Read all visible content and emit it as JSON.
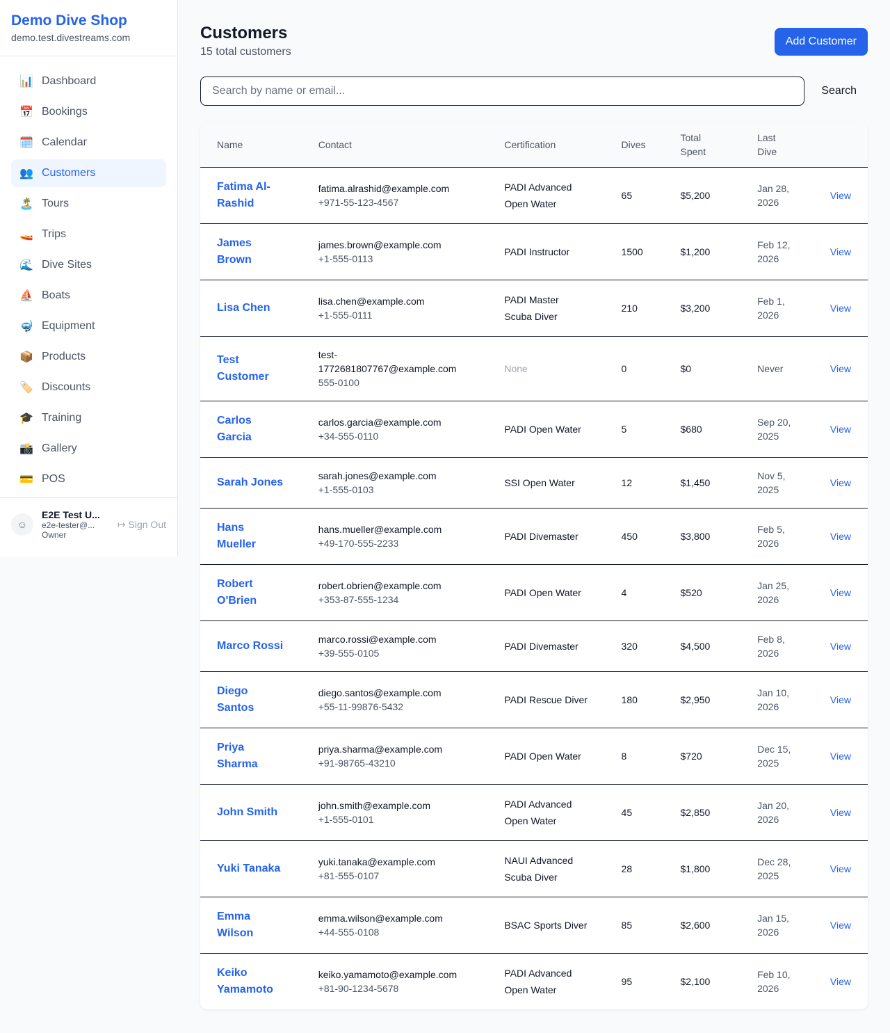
{
  "brand": {
    "title": "Demo Dive Shop",
    "domain": "demo.test.divestreams.com"
  },
  "nav": [
    {
      "label": "Dashboard",
      "icon": "📊"
    },
    {
      "label": "Bookings",
      "icon": "📅"
    },
    {
      "label": "Calendar",
      "icon": "🗓️"
    },
    {
      "label": "Customers",
      "icon": "👥",
      "active": true
    },
    {
      "label": "Tours",
      "icon": "🏝️"
    },
    {
      "label": "Trips",
      "icon": "🚤"
    },
    {
      "label": "Dive Sites",
      "icon": "🌊"
    },
    {
      "label": "Boats",
      "icon": "⛵"
    },
    {
      "label": "Equipment",
      "icon": "🤿"
    },
    {
      "label": "Products",
      "icon": "📦"
    },
    {
      "label": "Discounts",
      "icon": "🏷️"
    },
    {
      "label": "Training",
      "icon": "🎓"
    },
    {
      "label": "Gallery",
      "icon": "📸"
    },
    {
      "label": "POS",
      "icon": "💳"
    }
  ],
  "user": {
    "name": "E2E Test U...",
    "email": "e2e-tester@...",
    "role": "Owner",
    "sign_out": "Sign Out"
  },
  "page": {
    "title": "Customers",
    "subtitle": "15 total customers",
    "add_button": "Add Customer",
    "search_placeholder": "Search by name or email...",
    "search_button": "Search"
  },
  "table": {
    "headers": [
      "Name",
      "Contact",
      "Certification",
      "Dives",
      "Total Spent",
      "Last Dive"
    ],
    "action_label": "View",
    "rows": [
      {
        "name": "Fatima Al-Rashid",
        "email": "fatima.alrashid@example.com",
        "phone": "+971-55-123-4567",
        "cert": "PADI Advanced Open Water",
        "dives": "65",
        "spent": "$5,200",
        "last": "Jan 28, 2026"
      },
      {
        "name": "James Brown",
        "email": "james.brown@example.com",
        "phone": "+1-555-0113",
        "cert": "PADI Instructor",
        "dives": "1500",
        "spent": "$1,200",
        "last": "Feb 12, 2026"
      },
      {
        "name": "Lisa Chen",
        "email": "lisa.chen@example.com",
        "phone": "+1-555-0111",
        "cert": "PADI Master Scuba Diver",
        "dives": "210",
        "spent": "$3,200",
        "last": "Feb 1, 2026"
      },
      {
        "name": "Test Customer",
        "email": "test-1772681807767@example.com",
        "phone": "555-0100",
        "cert": "None",
        "dives": "0",
        "spent": "$0",
        "last": "Never"
      },
      {
        "name": "Carlos Garcia",
        "email": "carlos.garcia@example.com",
        "phone": "+34-555-0110",
        "cert": "PADI Open Water",
        "dives": "5",
        "spent": "$680",
        "last": "Sep 20, 2025"
      },
      {
        "name": "Sarah Jones",
        "email": "sarah.jones@example.com",
        "phone": "+1-555-0103",
        "cert": "SSI Open Water",
        "dives": "12",
        "spent": "$1,450",
        "last": "Nov 5, 2025"
      },
      {
        "name": "Hans Mueller",
        "email": "hans.mueller@example.com",
        "phone": "+49-170-555-2233",
        "cert": "PADI Divemaster",
        "dives": "450",
        "spent": "$3,800",
        "last": "Feb 5, 2026"
      },
      {
        "name": "Robert O'Brien",
        "email": "robert.obrien@example.com",
        "phone": "+353-87-555-1234",
        "cert": "PADI Open Water",
        "dives": "4",
        "spent": "$520",
        "last": "Jan 25, 2026"
      },
      {
        "name": "Marco Rossi",
        "email": "marco.rossi@example.com",
        "phone": "+39-555-0105",
        "cert": "PADI Divemaster",
        "dives": "320",
        "spent": "$4,500",
        "last": "Feb 8, 2026"
      },
      {
        "name": "Diego Santos",
        "email": "diego.santos@example.com",
        "phone": "+55-11-99876-5432",
        "cert": "PADI Rescue Diver",
        "dives": "180",
        "spent": "$2,950",
        "last": "Jan 10, 2026"
      },
      {
        "name": "Priya Sharma",
        "email": "priya.sharma@example.com",
        "phone": "+91-98765-43210",
        "cert": "PADI Open Water",
        "dives": "8",
        "spent": "$720",
        "last": "Dec 15, 2025"
      },
      {
        "name": "John Smith",
        "email": "john.smith@example.com",
        "phone": "+1-555-0101",
        "cert": "PADI Advanced Open Water",
        "dives": "45",
        "spent": "$2,850",
        "last": "Jan 20, 2026"
      },
      {
        "name": "Yuki Tanaka",
        "email": "yuki.tanaka@example.com",
        "phone": "+81-555-0107",
        "cert": "NAUI Advanced Scuba Diver",
        "dives": "28",
        "spent": "$1,800",
        "last": "Dec 28, 2025"
      },
      {
        "name": "Emma Wilson",
        "email": "emma.wilson@example.com",
        "phone": "+44-555-0108",
        "cert": "BSAC Sports Diver",
        "dives": "85",
        "spent": "$2,600",
        "last": "Jan 15, 2026"
      },
      {
        "name": "Keiko Yamamoto",
        "email": "keiko.yamamoto@example.com",
        "phone": "+81-90-1234-5678",
        "cert": "PADI Advanced Open Water",
        "dives": "95",
        "spent": "$2,100",
        "last": "Feb 10, 2026"
      }
    ]
  }
}
